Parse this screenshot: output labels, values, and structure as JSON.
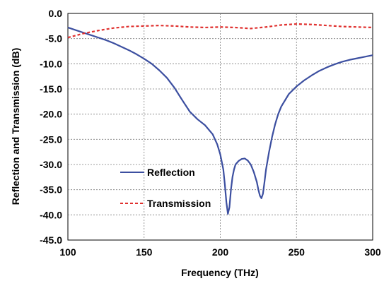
{
  "chart_data": {
    "type": "line",
    "title": "",
    "xlabel": "Frequency (THz)",
    "ylabel": "Reflection and Transmission  (dB)",
    "xlim": [
      100,
      300
    ],
    "ylim": [
      -45,
      0
    ],
    "x_ticks": [
      100,
      150,
      200,
      250,
      300
    ],
    "y_ticks": [
      "0.0",
      "-5.0",
      "-10.0",
      "-15.0",
      "-20.0",
      "-25.0",
      "-30.0",
      "-35.0",
      "-40.0",
      "-45.0"
    ],
    "grid": true,
    "legend_position": "lower-left inside",
    "series": [
      {
        "name": "Reflection",
        "color": "#3c4fa0",
        "style": "solid",
        "x": [
          100,
          105,
          110,
          115,
          120,
          125,
          130,
          135,
          140,
          145,
          150,
          155,
          160,
          165,
          170,
          175,
          180,
          185,
          190,
          195,
          198,
          200,
          202,
          203,
          204,
          205,
          206,
          207,
          208,
          209,
          210,
          212,
          214,
          216,
          218,
          220,
          222,
          224,
          225,
          226,
          227,
          228,
          229,
          230,
          232,
          234,
          236,
          238,
          240,
          245,
          250,
          255,
          260,
          265,
          270,
          275,
          280,
          285,
          290,
          295,
          300
        ],
        "y": [
          -2.8,
          -3.3,
          -3.8,
          -4.3,
          -4.8,
          -5.3,
          -5.9,
          -6.6,
          -7.3,
          -8.1,
          -9.0,
          -10.0,
          -11.3,
          -12.8,
          -14.8,
          -17.2,
          -19.5,
          -21.0,
          -22.2,
          -24.0,
          -26.0,
          -28.0,
          -31.0,
          -34.0,
          -37.5,
          -39.8,
          -38.5,
          -35.0,
          -32.5,
          -31.0,
          -30.0,
          -29.3,
          -28.9,
          -28.8,
          -29.2,
          -30.0,
          -31.5,
          -33.5,
          -35.0,
          -36.2,
          -36.7,
          -35.8,
          -33.5,
          -31.0,
          -27.5,
          -24.5,
          -22.0,
          -20.0,
          -18.5,
          -16.0,
          -14.5,
          -13.3,
          -12.3,
          -11.4,
          -10.7,
          -10.1,
          -9.6,
          -9.2,
          -8.9,
          -8.6,
          -8.3
        ]
      },
      {
        "name": "Transmission",
        "color": "#e0312f",
        "style": "dashed",
        "x": [
          100,
          110,
          120,
          130,
          140,
          150,
          160,
          170,
          180,
          190,
          200,
          210,
          220,
          230,
          240,
          250,
          260,
          270,
          280,
          290,
          300
        ],
        "y": [
          -4.8,
          -4.0,
          -3.4,
          -2.9,
          -2.6,
          -2.5,
          -2.4,
          -2.5,
          -2.7,
          -2.8,
          -2.7,
          -2.8,
          -3.0,
          -2.7,
          -2.3,
          -2.1,
          -2.2,
          -2.4,
          -2.6,
          -2.7,
          -2.8
        ]
      }
    ]
  }
}
